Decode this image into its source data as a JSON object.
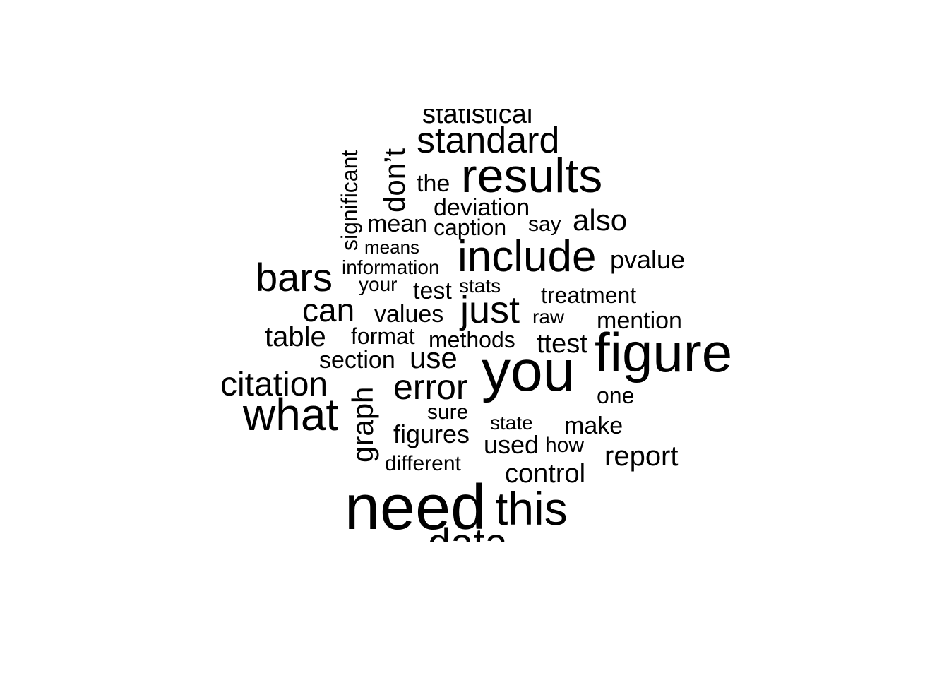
{
  "colors": {
    "background": "#ffffff",
    "text": "#000000"
  },
  "words": [
    {
      "id": "statistical",
      "text": "statistical",
      "weight": 3
    },
    {
      "id": "standard",
      "text": "standard",
      "weight": 4
    },
    {
      "id": "significant",
      "text": "significant",
      "weight": 2
    },
    {
      "id": "dont",
      "text": "don’t",
      "weight": 3
    },
    {
      "id": "the",
      "text": "the",
      "weight": 2
    },
    {
      "id": "results",
      "text": "results",
      "weight": 6
    },
    {
      "id": "deviation",
      "text": "deviation",
      "weight": 2
    },
    {
      "id": "mean",
      "text": "mean",
      "weight": 2
    },
    {
      "id": "caption",
      "text": "caption",
      "weight": 2
    },
    {
      "id": "say",
      "text": "say",
      "weight": 1
    },
    {
      "id": "also",
      "text": "also",
      "weight": 3
    },
    {
      "id": "means",
      "text": "means",
      "weight": 1
    },
    {
      "id": "include",
      "text": "include",
      "weight": 6
    },
    {
      "id": "pvalue",
      "text": "pvalue",
      "weight": 2
    },
    {
      "id": "bars",
      "text": "bars",
      "weight": 5
    },
    {
      "id": "information",
      "text": "information",
      "weight": 1
    },
    {
      "id": "your",
      "text": "your",
      "weight": 1
    },
    {
      "id": "test",
      "text": "test",
      "weight": 2
    },
    {
      "id": "stats",
      "text": "stats",
      "weight": 1
    },
    {
      "id": "treatment",
      "text": "treatment",
      "weight": 2
    },
    {
      "id": "can",
      "text": "can",
      "weight": 4
    },
    {
      "id": "values",
      "text": "values",
      "weight": 2
    },
    {
      "id": "just",
      "text": "just",
      "weight": 5
    },
    {
      "id": "raw",
      "text": "raw",
      "weight": 1
    },
    {
      "id": "mention",
      "text": "mention",
      "weight": 2
    },
    {
      "id": "table",
      "text": "table",
      "weight": 3
    },
    {
      "id": "format",
      "text": "format",
      "weight": 2
    },
    {
      "id": "methods",
      "text": "methods",
      "weight": 2
    },
    {
      "id": "ttest",
      "text": "ttest",
      "weight": 2
    },
    {
      "id": "figure",
      "text": "figure",
      "weight": 8
    },
    {
      "id": "section",
      "text": "section",
      "weight": 2
    },
    {
      "id": "use",
      "text": "use",
      "weight": 3
    },
    {
      "id": "you",
      "text": "you",
      "weight": 8
    },
    {
      "id": "citation",
      "text": "citation",
      "weight": 4
    },
    {
      "id": "graph",
      "text": "graph",
      "weight": 4
    },
    {
      "id": "error",
      "text": "error",
      "weight": 4
    },
    {
      "id": "one",
      "text": "one",
      "weight": 2
    },
    {
      "id": "what",
      "text": "what",
      "weight": 6
    },
    {
      "id": "sure",
      "text": "sure",
      "weight": 2
    },
    {
      "id": "state",
      "text": "state",
      "weight": 1
    },
    {
      "id": "make",
      "text": "make",
      "weight": 2
    },
    {
      "id": "figures",
      "text": "figures",
      "weight": 2
    },
    {
      "id": "used",
      "text": "used",
      "weight": 2
    },
    {
      "id": "how",
      "text": "how",
      "weight": 1
    },
    {
      "id": "report",
      "text": "report",
      "weight": 3
    },
    {
      "id": "different",
      "text": "different",
      "weight": 1
    },
    {
      "id": "control",
      "text": "control",
      "weight": 2
    },
    {
      "id": "need",
      "text": "need",
      "weight": 9
    },
    {
      "id": "this",
      "text": "this",
      "weight": 6
    },
    {
      "id": "data",
      "text": "data",
      "weight": 6
    }
  ]
}
